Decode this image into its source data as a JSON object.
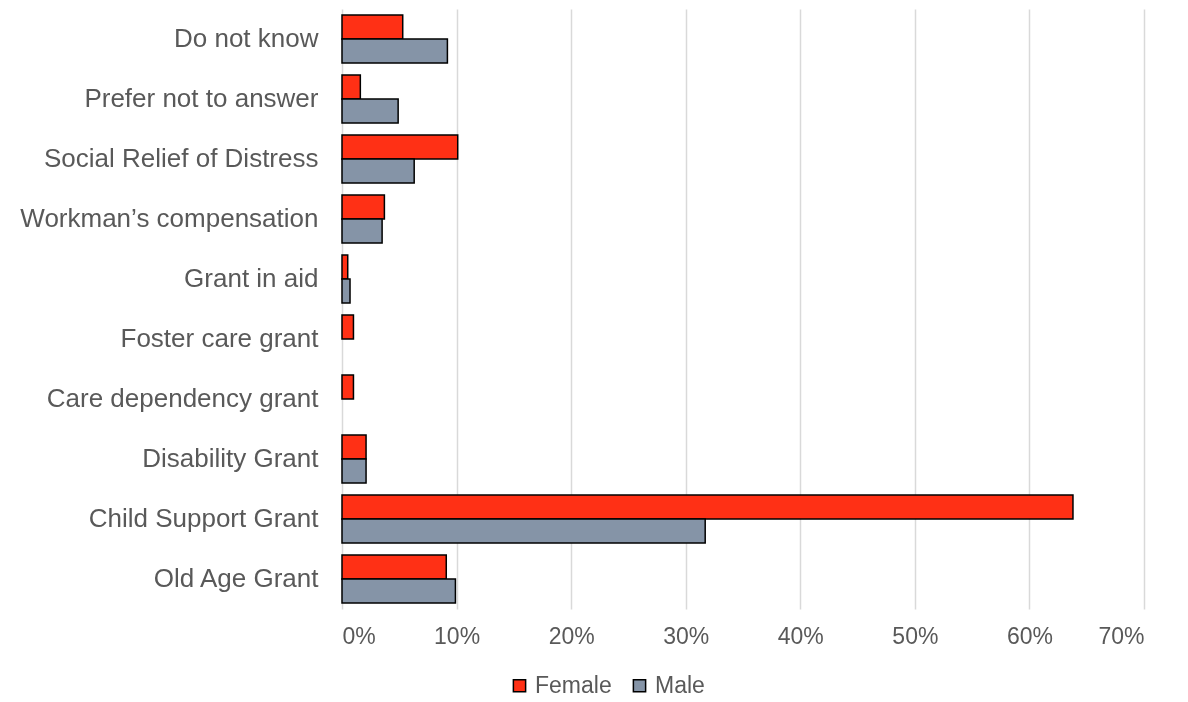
{
  "chart_data": {
    "type": "bar",
    "orientation": "horizontal",
    "categories": [
      "Do not know",
      "Prefer not to answer",
      "Social Relief of Distress",
      "Workman’s compensation",
      "Grant in aid",
      "Foster care grant",
      "Care dependency grant",
      "Disability Grant",
      "Child Support Grant",
      "Old Age Grant"
    ],
    "series": [
      {
        "name": "Female",
        "color": "#ff3015",
        "values": [
          5.3,
          1.6,
          10.1,
          3.7,
          0.5,
          1.0,
          1.0,
          2.1,
          63.8,
          9.1
        ]
      },
      {
        "name": "Male",
        "color": "#8594a7",
        "values": [
          9.2,
          4.9,
          6.3,
          3.5,
          0.7,
          null,
          null,
          2.1,
          31.7,
          9.9
        ]
      }
    ],
    "xlim": [
      0,
      70
    ],
    "xticks": [
      {
        "value": 0,
        "label": "0%"
      },
      {
        "value": 10,
        "label": "10%"
      },
      {
        "value": 20,
        "label": "20%"
      },
      {
        "value": 30,
        "label": "30%"
      },
      {
        "value": 40,
        "label": "40%"
      },
      {
        "value": 50,
        "label": "50%"
      },
      {
        "value": 60,
        "label": "60%"
      },
      {
        "value": 70,
        "label": "70%"
      }
    ],
    "grid": "x",
    "legend": "bottom"
  }
}
